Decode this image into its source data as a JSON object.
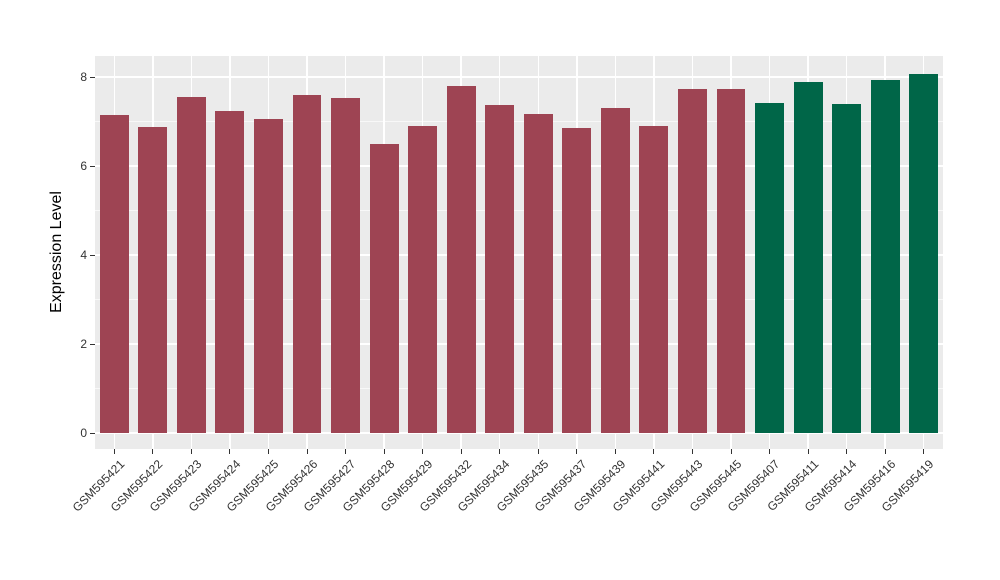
{
  "figure": {
    "background": "#FFFFFF",
    "panel_background": "#EBEBEB",
    "grid_color": "#FFFFFF",
    "axis_text_color": "#333333",
    "axis_title_color": "#000000"
  },
  "chart_data": {
    "type": "bar",
    "title": "",
    "xlabel": "",
    "ylabel": "Expression Level",
    "y_ticks": [
      0,
      2,
      4,
      6,
      8
    ],
    "y_minor_ticks": [
      1,
      3,
      5,
      7
    ],
    "ylim": [
      0,
      8.5
    ],
    "grid": "on",
    "legend": "none",
    "bar_group_colors": {
      "group_1": "#9E4453",
      "group_2": "#006648"
    },
    "categories": [
      "GSM595421",
      "GSM595422",
      "GSM595423",
      "GSM595424",
      "GSM595425",
      "GSM595426",
      "GSM595427",
      "GSM595428",
      "GSM595429",
      "GSM595432",
      "GSM595434",
      "GSM595435",
      "GSM595437",
      "GSM595439",
      "GSM595441",
      "GSM595443",
      "GSM595445",
      "GSM595407",
      "GSM595411",
      "GSM595414",
      "GSM595416",
      "GSM595419"
    ],
    "values": [
      7.15,
      6.87,
      7.56,
      7.24,
      7.05,
      7.6,
      7.52,
      6.5,
      6.91,
      7.79,
      7.36,
      7.16,
      6.86,
      7.31,
      6.89,
      7.74,
      7.72,
      7.41,
      7.88,
      7.39,
      7.93,
      8.06
    ],
    "bar_colors": [
      "#9E4453",
      "#9E4453",
      "#9E4453",
      "#9E4453",
      "#9E4453",
      "#9E4453",
      "#9E4453",
      "#9E4453",
      "#9E4453",
      "#9E4453",
      "#9E4453",
      "#9E4453",
      "#9E4453",
      "#9E4453",
      "#9E4453",
      "#9E4453",
      "#9E4453",
      "#006648",
      "#006648",
      "#006648",
      "#006648",
      "#006648"
    ]
  }
}
